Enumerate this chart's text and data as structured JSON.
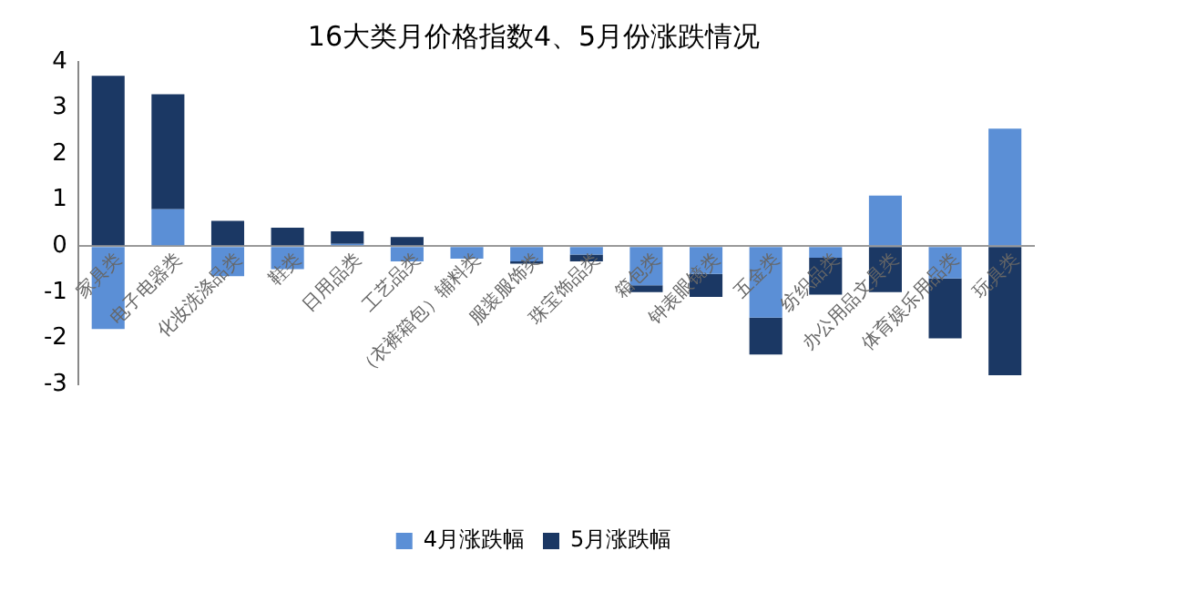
{
  "chart_data": {
    "type": "bar",
    "title": "16大类月价格指数4、5月份涨跌情况",
    "categories": [
      "家具类",
      "电子电器类",
      "化妆洗涤品类",
      "鞋类",
      "日用品类",
      "工艺品类",
      "（衣裤箱包）辅料类",
      "服装服饰类",
      "珠宝饰品类",
      "箱包类",
      "钟表眼镜类",
      "五金类",
      "纺织品类",
      "办公用品文具类",
      "体育娱乐用品类",
      "玩具类"
    ],
    "series": [
      {
        "name": "4月涨跌幅",
        "color": "#5b8fd6",
        "values": [
          -1.8,
          0.8,
          -0.65,
          -0.5,
          0.05,
          -0.33,
          -0.27,
          -0.33,
          -0.18,
          -0.85,
          -0.6,
          -1.55,
          -0.25,
          1.1,
          -0.7,
          2.55
        ]
      },
      {
        "name": "5月涨跌幅",
        "color": "#1b3864",
        "values": [
          3.7,
          2.5,
          0.55,
          0.4,
          0.27,
          0.2,
          0,
          -0.05,
          -0.15,
          -0.15,
          -0.5,
          -0.8,
          -0.8,
          -1.0,
          -1.3,
          -2.8
        ]
      }
    ],
    "stacked": true,
    "ylim": [
      -3,
      4
    ],
    "yticks": [
      -3,
      -2,
      -1,
      0,
      1,
      2,
      3,
      4
    ],
    "grid": false,
    "legend": "bottom"
  }
}
